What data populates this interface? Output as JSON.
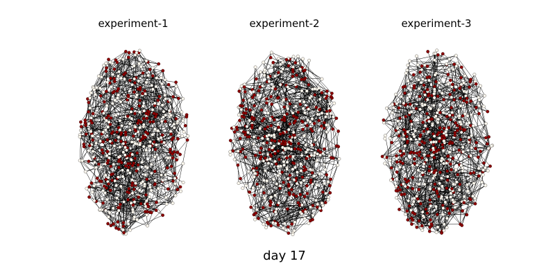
{
  "figure": {
    "caption": "day 17"
  },
  "panels": [
    {
      "title": "experiment-1"
    },
    {
      "title": "experiment-2"
    },
    {
      "title": "experiment-3"
    }
  ],
  "colors": {
    "edge": "#000000",
    "node_a": "#8b0000",
    "node_b": "#fffaf0",
    "node_outline": "#000000"
  }
}
